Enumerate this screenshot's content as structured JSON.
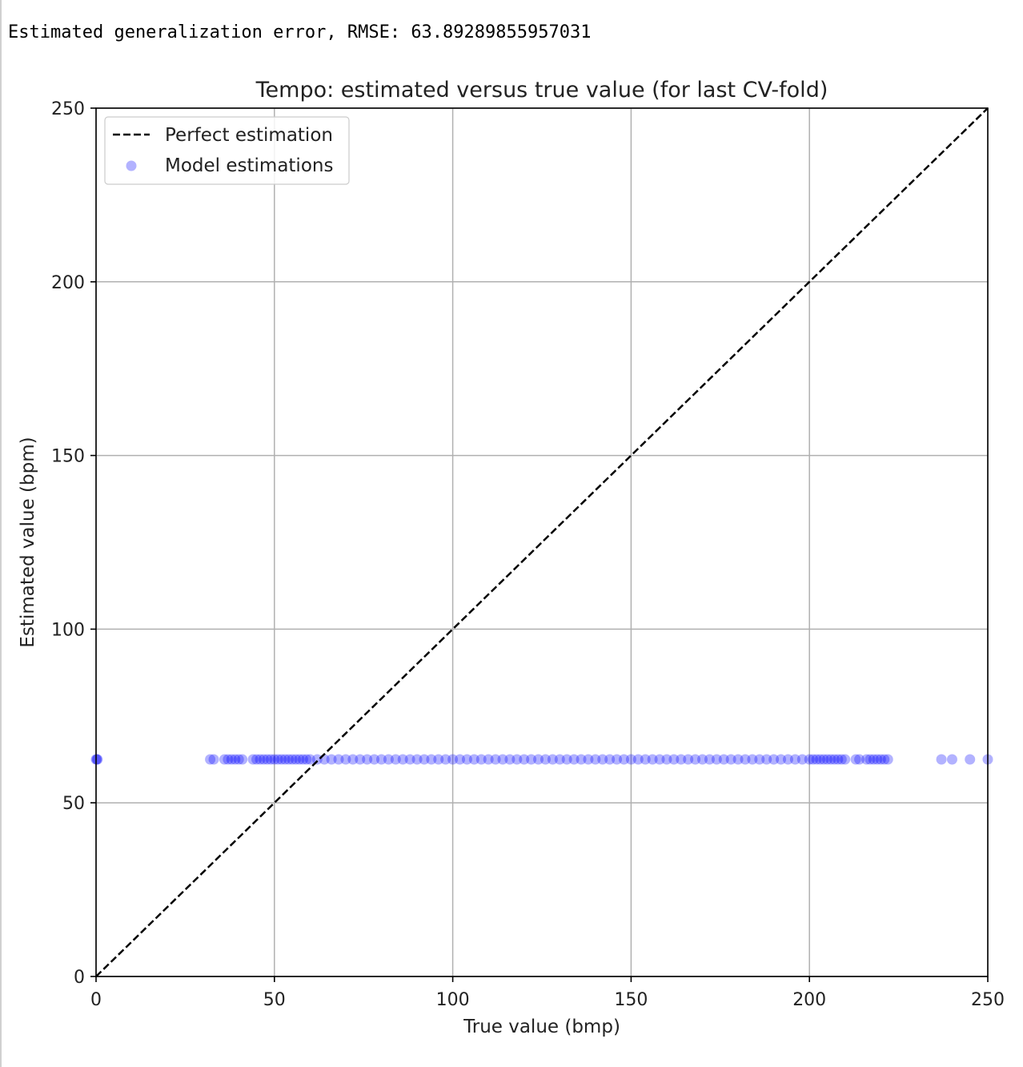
{
  "output": {
    "text": "Estimated generalization error, RMSE: 63.89289855957031"
  },
  "chart_data": {
    "type": "scatter",
    "title": "Tempo: estimated versus true value (for last CV-fold)",
    "xlabel": "True value (bmp)",
    "ylabel": "Estimated value (bpm)",
    "xlim": [
      0,
      250
    ],
    "ylim": [
      0,
      250
    ],
    "xticks": [
      0,
      50,
      100,
      150,
      200,
      250
    ],
    "yticks": [
      0,
      50,
      100,
      150,
      200,
      250
    ],
    "grid": true,
    "legend_position": "top-left",
    "colors": {
      "points": "#0000ff",
      "line": "#000000",
      "grid": "#b0b0b0",
      "axes": "#000000"
    },
    "series": [
      {
        "name": "Perfect estimation",
        "kind": "line",
        "style": "dashed",
        "x": [
          0,
          250
        ],
        "y": [
          0,
          250
        ]
      },
      {
        "name": "Model estimations",
        "kind": "scatter",
        "estimated_value": 62.5,
        "x": [
          0,
          0.2,
          0.4,
          32,
          33,
          36,
          37,
          38,
          39,
          40,
          41,
          44,
          45,
          46,
          47,
          48,
          49,
          50,
          51,
          52,
          53,
          54,
          55,
          56,
          57,
          58,
          59,
          60,
          62,
          64,
          66,
          68,
          70,
          72,
          74,
          76,
          78,
          80,
          82,
          84,
          86,
          88,
          90,
          92,
          94,
          96,
          98,
          100,
          102,
          104,
          106,
          108,
          110,
          112,
          114,
          116,
          118,
          120,
          122,
          124,
          126,
          128,
          130,
          132,
          134,
          136,
          138,
          140,
          142,
          144,
          146,
          148,
          150,
          152,
          154,
          156,
          158,
          160,
          162,
          164,
          166,
          168,
          170,
          172,
          174,
          176,
          178,
          180,
          182,
          184,
          186,
          188,
          190,
          192,
          194,
          196,
          198,
          200,
          201,
          202,
          203,
          204,
          205,
          206,
          207,
          208,
          209,
          210,
          213,
          214,
          216,
          217,
          218,
          219,
          220,
          221,
          222,
          237,
          240,
          245,
          250
        ]
      }
    ]
  }
}
